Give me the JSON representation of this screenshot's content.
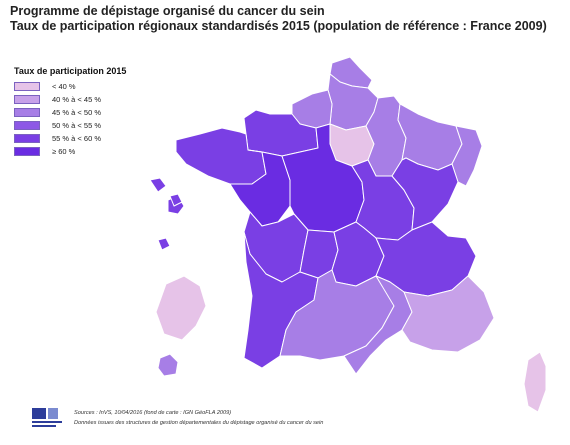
{
  "title": {
    "line1": "Programme de dépistage organisé du cancer du sein",
    "line2": "Taux de participation régionaux standardisés 2015 (population de référence : France 2009)"
  },
  "legend": {
    "title": "Taux de participation 2015",
    "items": [
      {
        "label": "< 40 %",
        "color": "#e6c3e8"
      },
      {
        "label": "40 % à < 45 %",
        "color": "#c7a1e9"
      },
      {
        "label": "45 % à < 50 %",
        "color": "#a77ee6"
      },
      {
        "label": "50 % à < 55 %",
        "color": "#8d58e6"
      },
      {
        "label": "55 % à < 60 %",
        "color": "#7a3fe4"
      },
      {
        "label": "≥ 60 %",
        "color": "#6a2ce2"
      }
    ]
  },
  "regions": [
    {
      "name": "Nord-Pas-de-Calais",
      "class": "45 % à < 50 %"
    },
    {
      "name": "Picardie",
      "class": "45 % à < 50 %"
    },
    {
      "name": "Haute-Normandie",
      "class": "45 % à < 50 %"
    },
    {
      "name": "Basse-Normandie",
      "class": "55 % à < 60 %"
    },
    {
      "name": "Île-de-France",
      "class": "< 40 %"
    },
    {
      "name": "Champagne-Ardenne",
      "class": "45 % à < 50 %"
    },
    {
      "name": "Lorraine",
      "class": "45 % à < 50 %"
    },
    {
      "name": "Alsace",
      "class": "45 % à < 50 %"
    },
    {
      "name": "Bretagne",
      "class": "55 % à < 60 %"
    },
    {
      "name": "Pays de la Loire",
      "class": "≥ 60 %"
    },
    {
      "name": "Centre",
      "class": "≥ 60 %"
    },
    {
      "name": "Bourgogne",
      "class": "55 % à < 60 %"
    },
    {
      "name": "Franche-Comté",
      "class": "55 % à < 60 %"
    },
    {
      "name": "Poitou-Charentes",
      "class": "55 % à < 60 %"
    },
    {
      "name": "Limousin",
      "class": "55 % à < 60 %"
    },
    {
      "name": "Auvergne",
      "class": "55 % à < 60 %"
    },
    {
      "name": "Rhône-Alpes",
      "class": "55 % à < 60 %"
    },
    {
      "name": "Aquitaine",
      "class": "55 % à < 60 %"
    },
    {
      "name": "Midi-Pyrénées",
      "class": "45 % à < 50 %"
    },
    {
      "name": "Languedoc-Roussillon",
      "class": "45 % à < 50 %"
    },
    {
      "name": "Provence-Alpes-Côte d'Azur",
      "class": "40 % à < 45 %"
    },
    {
      "name": "Corse",
      "class": "< 40 %"
    },
    {
      "name": "Guyane",
      "class": "< 40 %"
    },
    {
      "name": "Martinique",
      "class": "45 % à < 50 %"
    },
    {
      "name": "Guadeloupe",
      "class": "55 % à < 60 %"
    },
    {
      "name": "La Réunion",
      "class": "55 % à < 60 %"
    }
  ],
  "footer": {
    "sources_line1": "Sources : InVS, 10/04/2016 (fond de carte : IGN GéoFLA 2009)",
    "sources_line2": "Données issues des structures de gestion départementales du dépistage organisé du cancer du sein"
  }
}
